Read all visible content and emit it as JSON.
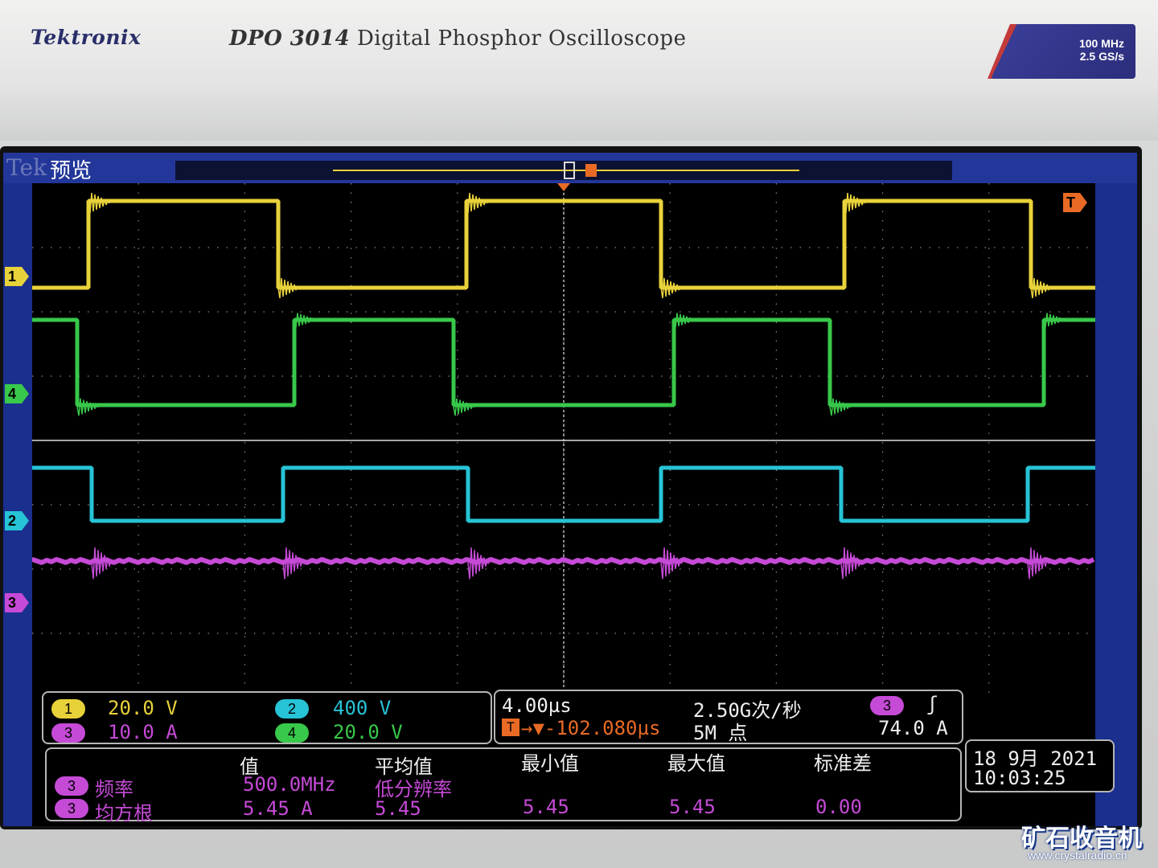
{
  "device": {
    "brand": "Tektronix",
    "model_bold": "DPO 3014",
    "model_desc": "Digital Phosphor Oscilloscope",
    "spec_bw": "100 MHz",
    "spec_rate": "2.5 GS/s"
  },
  "screen": {
    "tek_logo": "Tek",
    "mode": "预览",
    "trigger_marker": "T",
    "channel_markers": {
      "ch1": "1",
      "ch2": "2",
      "ch3": "3",
      "ch4": "4"
    }
  },
  "channels": {
    "ch1": {
      "num": "1",
      "scale": "20.0 V"
    },
    "ch2": {
      "num": "2",
      "scale": "400 V"
    },
    "ch3": {
      "num": "3",
      "scale": "10.0 A"
    },
    "ch4": {
      "num": "4",
      "scale": "20.0 V"
    }
  },
  "timebase": {
    "time_div": "4.00µs",
    "sample_rate": "2.50G次/秒",
    "position": "→▼-102.080µs",
    "record_length": "5M 点",
    "trigger_src": "3",
    "trigger_slope": "ʃ",
    "trigger_level": "74.0 A"
  },
  "measurements": {
    "headers": {
      "value": "值",
      "mean": "平均值",
      "min": "最小值",
      "max": "最大值",
      "std": "标准差"
    },
    "row1": {
      "ch": "3",
      "name": "频率",
      "value": "500.0MHz",
      "mean": "低分辨率"
    },
    "row2": {
      "ch": "3",
      "name": "均方根",
      "value": "5.45 A",
      "mean": "5.45",
      "min": "5.45",
      "max": "5.45",
      "std": "0.00"
    }
  },
  "datetime": {
    "date": "18 9月 2021",
    "time": "10:03:25"
  },
  "watermark": {
    "name": "矿石收音机",
    "url": "www.crystalradio.cn"
  },
  "colors": {
    "ch1": "#e8d23a",
    "ch2": "#27c3d6",
    "ch3": "#c54ad6",
    "ch4": "#38c84a",
    "trigger": "#e86a25"
  }
}
